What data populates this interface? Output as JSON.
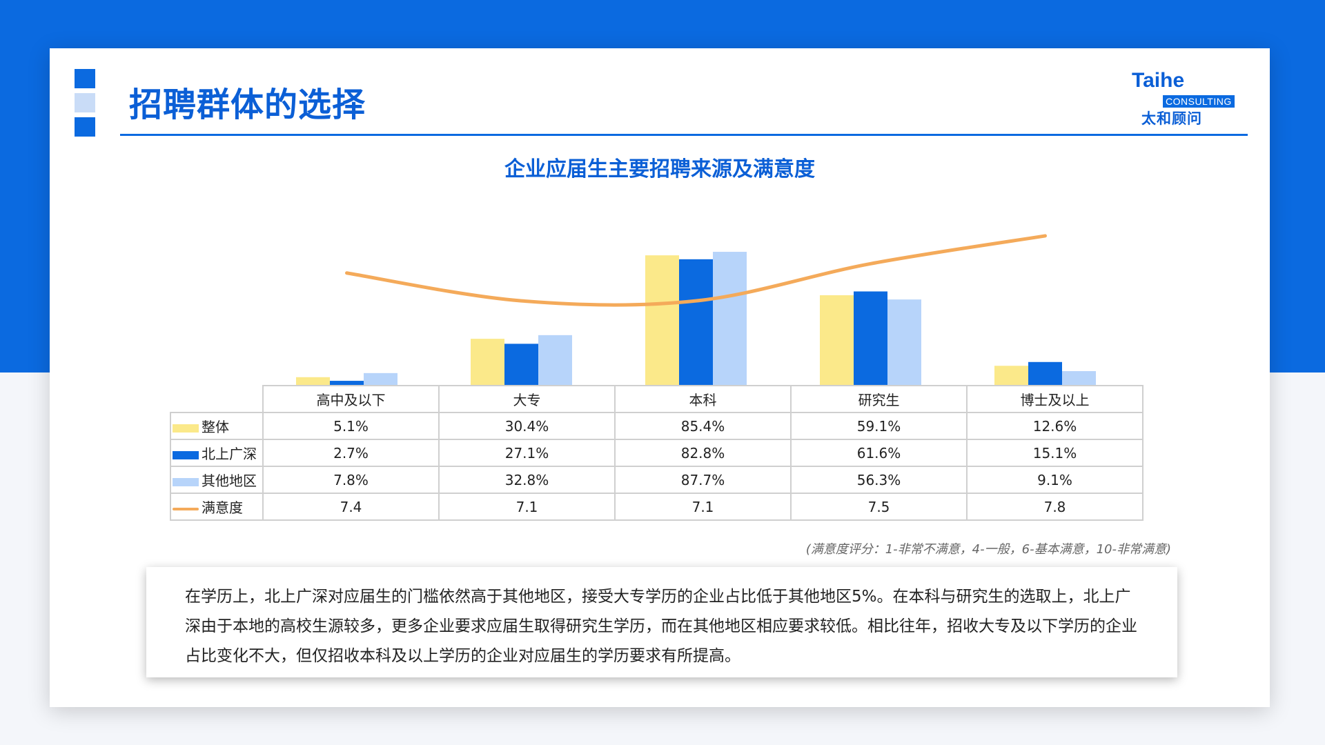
{
  "page": {
    "title": "招聘群体的选择",
    "logo": {
      "brand": "Taihe",
      "sub": "CONSULTING",
      "cn": "太和顾问"
    }
  },
  "colors": {
    "overall": "#fbe98a",
    "tier1": "#0b6ae0",
    "other": "#b7d4fa",
    "satisfaction": "#f4aa5a",
    "accent": "#0b5fd6"
  },
  "chart_data": {
    "type": "bar",
    "title": "企业应届生主要招聘来源及满意度",
    "categories": [
      "高中及以下",
      "大专",
      "本科",
      "研究生",
      "博士及以上"
    ],
    "series": [
      {
        "name": "整体",
        "values": [
          5.1,
          30.4,
          85.4,
          59.1,
          12.6
        ],
        "labels": [
          "5.1%",
          "30.4%",
          "85.4%",
          "59.1%",
          "12.6%"
        ]
      },
      {
        "name": "北上广深",
        "values": [
          2.7,
          27.1,
          82.8,
          61.6,
          15.1
        ],
        "labels": [
          "2.7%",
          "27.1%",
          "82.8%",
          "61.6%",
          "15.1%"
        ]
      },
      {
        "name": "其他地区",
        "values": [
          7.8,
          32.8,
          87.7,
          56.3,
          9.1
        ],
        "labels": [
          "7.8%",
          "32.8%",
          "87.7%",
          "56.3%",
          "9.1%"
        ]
      },
      {
        "name": "满意度",
        "type": "line",
        "values": [
          7.4,
          7.1,
          7.1,
          7.5,
          7.8
        ],
        "labels": [
          "7.4",
          "7.1",
          "7.1",
          "7.5",
          "7.8"
        ]
      }
    ],
    "ylim": [
      0,
      100
    ],
    "line_ylim": [
      6.7,
      8.0
    ],
    "grid": false,
    "legend": "table-left"
  },
  "note": "(满意度评分：1-非常不满意，4-一般，6-基本满意，10-非常满意)",
  "summary": "在学历上，北上广深对应届生的门槛依然高于其他地区，接受大专学历的企业占比低于其他地区5%。在本科与研究生的选取上，北上广深由于本地的高校生源较多，更多企业要求应届生取得研究生学历，而在其他地区相应要求较低。相比往年，招收大专及以下学历的企业占比变化不大，但仅招收本科及以上学历的企业对应届生的学历要求有所提高。"
}
